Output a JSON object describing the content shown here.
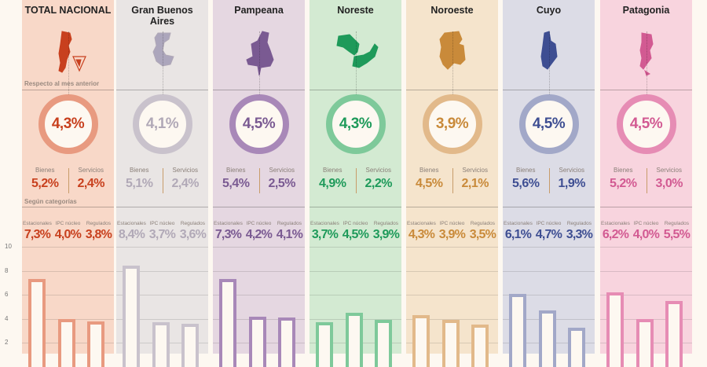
{
  "labels": {
    "respecto": "Respecto al mes anterior",
    "segun": "Según categorías",
    "bienes": "Bienes",
    "servicios": "Servicios",
    "estacionales": "Estacionales",
    "ipc_nucleo": "IPC núcleo",
    "regulados": "Regulados"
  },
  "yaxis": {
    "ticks": [
      "10",
      "8",
      "6",
      "4",
      "2"
    ]
  },
  "regions": [
    {
      "name": "TOTAL NACIONAL",
      "map_icon": "argentina-map-icon",
      "bg": "#f8d8c8",
      "accent": "#e89a80",
      "text": "#c8401e",
      "mensual": "4,3%",
      "bienes": "5,2%",
      "servicios": "2,4%",
      "estacionales": "7,3%",
      "nucleo": "4,0%",
      "regulados": "3,8%"
    },
    {
      "name": "Gran Buenos Aires",
      "map_icon": "gba-map-icon",
      "bg": "#e9e5e4",
      "accent": "#c9c2cc",
      "text": "#b1a9b7",
      "mensual": "4,1%",
      "bienes": "5,1%",
      "servicios": "2,4%",
      "estacionales": "8,4%",
      "nucleo": "3,7%",
      "regulados": "3,6%"
    },
    {
      "name": "Pampeana",
      "map_icon": "pampeana-map-icon",
      "bg": "#e5d7e1",
      "accent": "#a888b8",
      "text": "#7a5a92",
      "mensual": "4,5%",
      "bienes": "5,4%",
      "servicios": "2,5%",
      "estacionales": "7,3%",
      "nucleo": "4,2%",
      "regulados": "4,1%"
    },
    {
      "name": "Noreste",
      "map_icon": "noreste-map-icon",
      "bg": "#d3ead2",
      "accent": "#7ec99a",
      "text": "#1e9a5a",
      "mensual": "4,3%",
      "bienes": "4,9%",
      "servicios": "2,2%",
      "estacionales": "3,7%",
      "nucleo": "4,5%",
      "regulados": "3,9%"
    },
    {
      "name": "Noroeste",
      "map_icon": "noroeste-map-icon",
      "bg": "#f5e4cc",
      "accent": "#e2b98a",
      "text": "#c98a3a",
      "mensual": "3,9%",
      "bienes": "4,5%",
      "servicios": "2,1%",
      "estacionales": "4,3%",
      "nucleo": "3,9%",
      "regulados": "3,5%"
    },
    {
      "name": "Cuyo",
      "map_icon": "cuyo-map-icon",
      "bg": "#dcdce6",
      "accent": "#a2a8c8",
      "text": "#3e4e92",
      "mensual": "4,5%",
      "bienes": "5,6%",
      "servicios": "1,9%",
      "estacionales": "6,1%",
      "nucleo": "4,7%",
      "regulados": "3,3%"
    },
    {
      "name": "Patagonia",
      "map_icon": "patagonia-map-icon",
      "bg": "#f8d4de",
      "accent": "#e68cb4",
      "text": "#d25a92",
      "mensual": "4,5%",
      "bienes": "5,2%",
      "servicios": "3,0%",
      "estacionales": "6,2%",
      "nucleo": "4,0%",
      "regulados": "5,5%"
    }
  ],
  "chart_data": {
    "type": "bar",
    "title": "IPC por región — variación respecto al mes anterior, según categorías",
    "categories": [
      "Estacionales",
      "IPC núcleo",
      "Regulados"
    ],
    "groups": [
      "TOTAL NACIONAL",
      "Gran Buenos Aires",
      "Pampeana",
      "Noreste",
      "Noroeste",
      "Cuyo",
      "Patagonia"
    ],
    "series": [
      {
        "name": "TOTAL NACIONAL",
        "values": [
          7.3,
          4.0,
          3.8
        ],
        "general": 4.3,
        "bienes": 5.2,
        "servicios": 2.4
      },
      {
        "name": "Gran Buenos Aires",
        "values": [
          8.4,
          3.7,
          3.6
        ],
        "general": 4.1,
        "bienes": 5.1,
        "servicios": 2.4
      },
      {
        "name": "Pampeana",
        "values": [
          7.3,
          4.2,
          4.1
        ],
        "general": 4.5,
        "bienes": 5.4,
        "servicios": 2.5
      },
      {
        "name": "Noreste",
        "values": [
          3.7,
          4.5,
          3.9
        ],
        "general": 4.3,
        "bienes": 4.9,
        "servicios": 2.2
      },
      {
        "name": "Noroeste",
        "values": [
          4.3,
          3.9,
          3.5
        ],
        "general": 3.9,
        "bienes": 4.5,
        "servicios": 2.1
      },
      {
        "name": "Cuyo",
        "values": [
          6.1,
          4.7,
          3.3
        ],
        "general": 4.5,
        "bienes": 5.6,
        "servicios": 1.9
      },
      {
        "name": "Patagonia",
        "values": [
          6.2,
          4.0,
          5.5
        ],
        "general": 4.5,
        "bienes": 5.2,
        "servicios": 3.0
      }
    ],
    "xlabel": "",
    "ylabel": "%",
    "ylim": [
      0,
      10
    ],
    "yticks": [
      2,
      4,
      6,
      8,
      10
    ],
    "grid": true,
    "legend": "column headers"
  }
}
